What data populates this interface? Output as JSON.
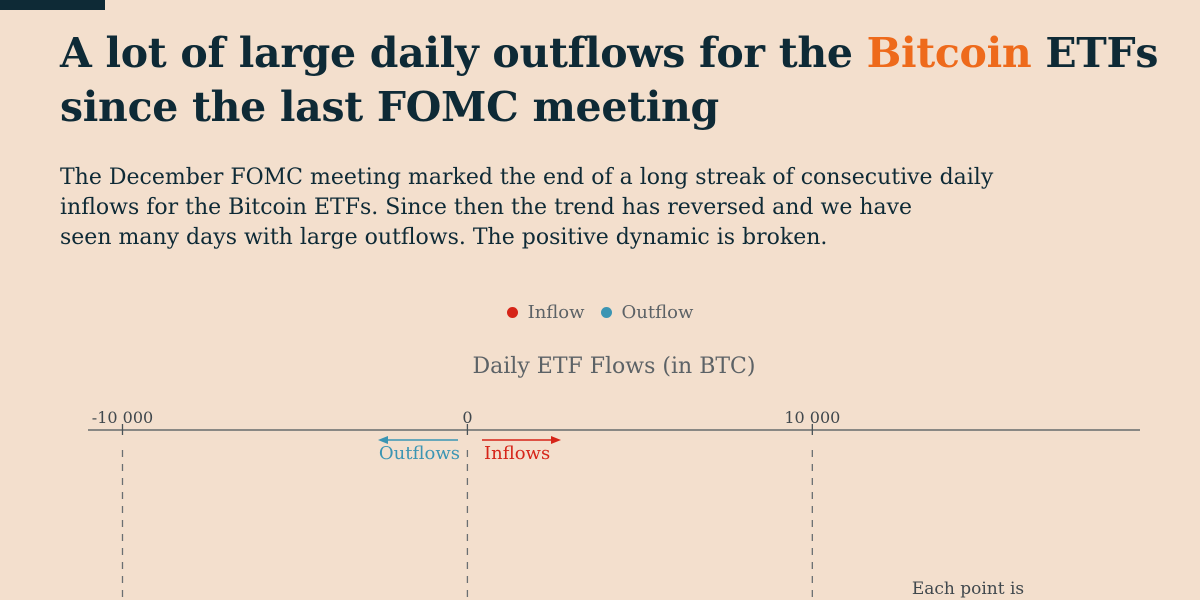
{
  "header": {
    "title_pre": "A lot of large daily outflows for the ",
    "title_accent": "Bitcoin",
    "title_post": " ETFs since the last FOMC meeting",
    "subtitle_lines": [
      "The December FOMC meeting marked the end of a long streak of consecutive daily",
      "inflows for the Bitcoin ETFs. Since then the trend has reversed and we have",
      "seen many days with large outflows. The positive dynamic is broken."
    ]
  },
  "colors": {
    "accent": "#ee6a1b",
    "inflow": "#d62418",
    "outflow": "#3b95b3",
    "axis": "#4a5358",
    "text_dark": "#0e2a36"
  },
  "chart_data": {
    "type": "scatter",
    "title": "Daily ETF Flows (in BTC)",
    "legend": [
      {
        "name": "Inflow",
        "color": "#d62418"
      },
      {
        "name": "Outflow",
        "color": "#3b95b3"
      }
    ],
    "legend_position": "top-center",
    "xlim": [
      -11000,
      19500
    ],
    "x_ticks": [
      {
        "value": -10000,
        "label": "-10 000"
      },
      {
        "value": 0,
        "label": "0"
      },
      {
        "value": 10000,
        "label": "10 000"
      }
    ],
    "direction_labels": {
      "outflows": "Outflows",
      "inflows": "Inflows"
    },
    "annotation": "Each point is",
    "grid": "dashed vertical lines at ticks",
    "series": []
  }
}
